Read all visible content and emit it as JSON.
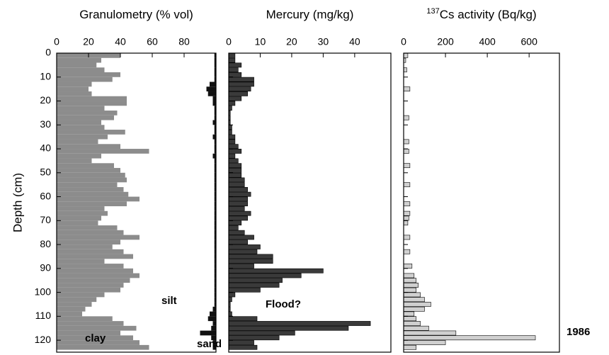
{
  "chart_data": [
    {
      "type": "hbar-stack",
      "title": "Granulometry (% vol)",
      "y_label": "Depth (cm)",
      "y": [
        0,
        2,
        4,
        6,
        8,
        10,
        12,
        14,
        16,
        18,
        20,
        22,
        24,
        26,
        28,
        30,
        32,
        34,
        36,
        38,
        40,
        42,
        44,
        46,
        48,
        50,
        52,
        54,
        56,
        58,
        60,
        62,
        64,
        66,
        68,
        70,
        72,
        74,
        76,
        78,
        80,
        82,
        84,
        86,
        88,
        90,
        92,
        94,
        96,
        98,
        100,
        102,
        104,
        106,
        108,
        110,
        112,
        114,
        116,
        118,
        120,
        122
      ],
      "ylim": [
        0,
        125
      ],
      "yticks": [
        0,
        10,
        20,
        30,
        40,
        50,
        60,
        70,
        80,
        90,
        100,
        110,
        120
      ],
      "xlim": [
        0,
        100
      ],
      "xticks": [
        0,
        20,
        40,
        60,
        80
      ],
      "series": [
        {
          "name": "clay",
          "color": "#8c8c8c",
          "anchor": "left",
          "values": [
            40,
            28,
            25,
            30,
            40,
            35,
            22,
            20,
            22,
            44,
            44,
            30,
            38,
            36,
            28,
            30,
            43,
            32,
            26,
            40,
            58,
            28,
            22,
            36,
            40,
            43,
            44,
            38,
            42,
            45,
            52,
            44,
            30,
            32,
            28,
            26,
            38,
            42,
            52,
            40,
            35,
            42,
            48,
            30,
            42,
            48,
            52,
            46,
            42,
            40,
            30,
            25,
            22,
            18,
            16,
            35,
            42,
            50,
            40,
            48,
            52,
            58
          ]
        },
        {
          "name": "sand",
          "color": "#111111",
          "anchor": "right",
          "values": [
            1,
            1,
            1,
            1,
            1,
            1,
            4,
            6,
            5,
            2,
            2,
            1,
            1,
            1,
            2,
            1,
            1,
            2,
            1,
            1,
            1,
            2,
            1,
            1,
            1,
            1,
            1,
            1,
            1,
            1,
            1,
            1,
            1,
            1,
            1,
            1,
            1,
            1,
            1,
            1,
            1,
            1,
            1,
            1,
            1,
            1,
            1,
            1,
            1,
            1,
            1,
            1,
            1,
            2,
            4,
            5,
            2,
            3,
            10,
            3,
            2,
            2
          ]
        }
      ],
      "annotations": [
        "silt",
        "clay",
        "sand"
      ]
    },
    {
      "type": "hbar",
      "title": "Mercury (mg/kg)",
      "y": [
        0,
        2,
        4,
        6,
        8,
        10,
        12,
        14,
        16,
        18,
        20,
        22,
        24,
        26,
        28,
        30,
        32,
        34,
        36,
        38,
        40,
        42,
        44,
        46,
        48,
        50,
        52,
        54,
        56,
        58,
        60,
        62,
        64,
        66,
        68,
        70,
        72,
        74,
        76,
        78,
        80,
        82,
        84,
        86,
        88,
        90,
        92,
        94,
        96,
        98,
        100,
        102,
        104,
        106,
        108,
        110,
        112,
        114,
        116,
        118,
        120,
        122
      ],
      "ylim": [
        0,
        125
      ],
      "xlim": [
        0,
        51.5
      ],
      "xticks": [
        0,
        10,
        20,
        30,
        40
      ],
      "color": "#3a3a3a",
      "values": [
        2,
        2,
        4,
        3,
        4,
        8,
        8,
        7,
        6,
        4,
        2,
        1,
        0.5,
        0.5,
        0.5,
        1,
        1,
        2,
        2,
        3,
        4,
        2,
        3,
        4,
        4,
        4,
        5,
        5,
        6,
        7,
        6,
        6,
        5,
        7,
        6,
        4,
        3,
        5,
        8,
        6,
        10,
        9,
        14,
        14,
        8,
        30,
        23,
        17,
        16,
        10,
        2,
        1,
        0.5,
        0.5,
        1,
        9,
        45,
        38,
        21,
        16,
        8,
        9
      ],
      "annotations": [
        "Flood?"
      ]
    },
    {
      "type": "hbar",
      "title_superscript": "137",
      "title": "Cs activity (Bq/kg)",
      "y": [
        0,
        2,
        4,
        6,
        8,
        10,
        12,
        14,
        16,
        18,
        20,
        22,
        24,
        26,
        28,
        30,
        32,
        34,
        36,
        38,
        40,
        42,
        44,
        46,
        48,
        50,
        52,
        54,
        56,
        58,
        60,
        62,
        64,
        66,
        68,
        70,
        72,
        74,
        76,
        78,
        80,
        82,
        84,
        86,
        88,
        90,
        92,
        94,
        96,
        98,
        100,
        102,
        104,
        106,
        108,
        110,
        112,
        114,
        116,
        118,
        120,
        122
      ],
      "ylim": [
        0,
        125
      ],
      "xlim": [
        0,
        745
      ],
      "xticks": [
        0,
        200,
        400,
        600
      ],
      "color": "#d0d0d0",
      "values": [
        20,
        10,
        0,
        15,
        0,
        0,
        0,
        30,
        0,
        0,
        0,
        0,
        0,
        25,
        0,
        0,
        0,
        0,
        25,
        0,
        25,
        0,
        0,
        30,
        0,
        0,
        0,
        30,
        0,
        0,
        0,
        30,
        0,
        30,
        25,
        20,
        0,
        0,
        30,
        0,
        0,
        30,
        0,
        0,
        40,
        0,
        50,
        60,
        70,
        60,
        80,
        100,
        130,
        100,
        50,
        60,
        80,
        120,
        250,
        630,
        200,
        60
      ],
      "annotations": [
        "1986"
      ]
    }
  ]
}
